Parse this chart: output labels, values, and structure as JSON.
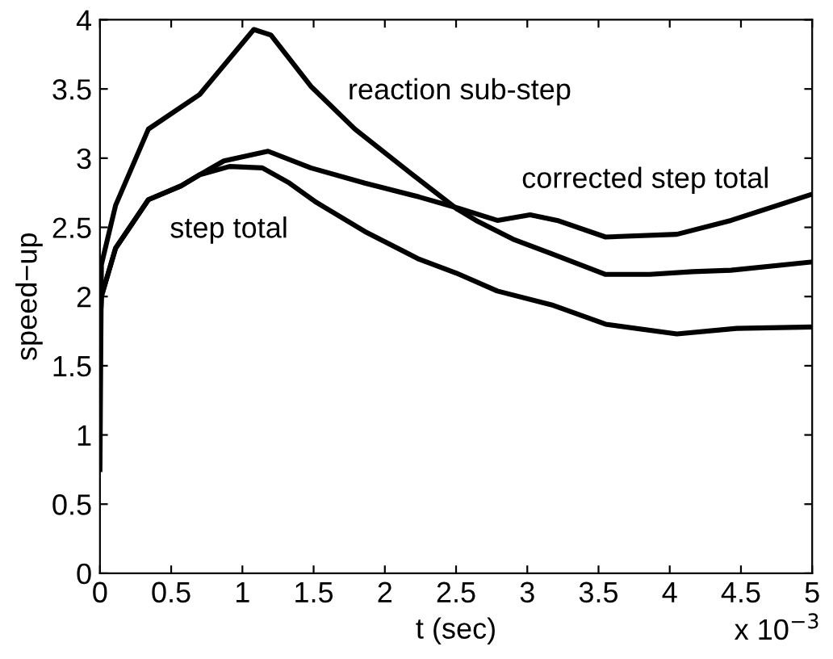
{
  "chart_data": {
    "type": "line",
    "xlabel": "t (sec)",
    "ylabel": "speed−up",
    "xlim": [
      0,
      5
    ],
    "ylim": [
      0,
      4
    ],
    "xticks": [
      0,
      0.5,
      1,
      1.5,
      2,
      2.5,
      3,
      3.5,
      4,
      4.5,
      5
    ],
    "yticks": [
      0,
      0.5,
      1,
      1.5,
      2,
      2.5,
      3,
      3.5,
      4
    ],
    "grid": false,
    "legend": false,
    "marker": "none",
    "line_style": "solid",
    "series": [
      {
        "name": "reaction sub-step",
        "color": "#000000",
        "x": [
          0,
          0.01,
          0.11,
          0.34,
          0.7,
          1.08,
          1.2,
          1.48,
          1.79,
          2.17,
          2.51,
          2.64,
          2.91,
          3.17,
          3.55,
          3.86,
          4.16,
          4.43,
          5
        ],
        "values": [
          0.75,
          2.23,
          2.66,
          3.21,
          3.46,
          3.93,
          3.89,
          3.52,
          3.21,
          2.9,
          2.63,
          2.55,
          2.41,
          2.31,
          2.16,
          2.16,
          2.18,
          2.19,
          2.25
        ]
      },
      {
        "name": "corrected step total",
        "color": "#000000",
        "x": [
          0,
          0.01,
          0.11,
          0.34,
          0.57,
          0.7,
          0.87,
          1.18,
          1.48,
          1.86,
          2.24,
          2.51,
          2.79,
          3.02,
          3.21,
          3.55,
          4.05,
          4.43,
          5
        ],
        "values": [
          1.75,
          2.0,
          2.35,
          2.7,
          2.8,
          2.88,
          2.98,
          3.05,
          2.93,
          2.82,
          2.72,
          2.64,
          2.55,
          2.59,
          2.55,
          2.43,
          2.45,
          2.55,
          2.74
        ]
      },
      {
        "name": "step total",
        "color": "#000000",
        "x": [
          0,
          0.01,
          0.11,
          0.34,
          0.57,
          0.7,
          0.91,
          1.14,
          1.33,
          1.52,
          1.86,
          2.24,
          2.5,
          2.79,
          3.17,
          3.55,
          4.05,
          4.47,
          5
        ],
        "values": [
          1.75,
          2.0,
          2.35,
          2.7,
          2.8,
          2.88,
          2.94,
          2.93,
          2.82,
          2.68,
          2.47,
          2.27,
          2.17,
          2.04,
          1.94,
          1.8,
          1.73,
          1.77,
          1.78
        ]
      }
    ],
    "annotations": [
      "x 10$^{−3}$"
    ]
  }
}
